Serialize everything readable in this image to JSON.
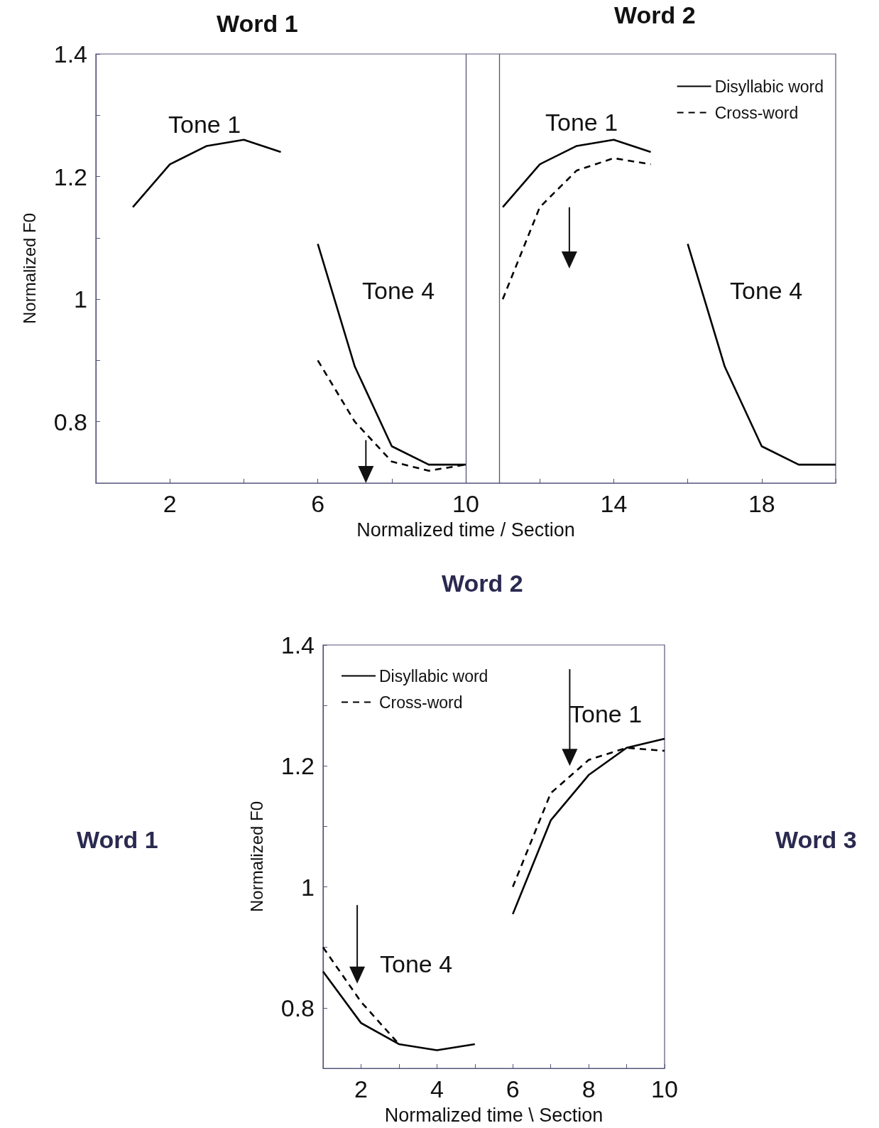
{
  "chart_data": [
    {
      "type": "line",
      "xlabel": "Normalized time / Section",
      "ylabel": "Normalized F0",
      "xlim": [
        0,
        20
      ],
      "ylim": [
        0.7,
        1.4
      ],
      "xticks": [
        2,
        {
          "value": 4,
          "label": null
        },
        6,
        {
          "value": 8,
          "label": null
        },
        10,
        {
          "value": 12,
          "label": null
        },
        14,
        {
          "value": 16,
          "label": null
        },
        18,
        {
          "value": 20,
          "label": null
        }
      ],
      "yticks": [
        {
          "value": 0.7,
          "label": null
        },
        0.8,
        {
          "value": 0.9,
          "label": null
        },
        1,
        {
          "value": 1.1,
          "label": null
        },
        1.2,
        {
          "value": 1.3,
          "label": null
        },
        1.4
      ],
      "legend": "top right",
      "grid": false,
      "series": [
        {
          "name": "Disyllabic word",
          "color": "#000000",
          "line_style": "solid",
          "x": [
            1,
            2,
            3,
            4,
            5
          ],
          "values": [
            1.15,
            1.22,
            1.25,
            1.26,
            1.24
          ]
        },
        {
          "color": "#000000",
          "line_style": "solid",
          "x": [
            6,
            7,
            8,
            9,
            10
          ],
          "values": [
            1.09,
            0.89,
            0.76,
            0.73,
            0.73
          ]
        },
        {
          "color": "#000000",
          "line_style": "solid",
          "x": [
            11,
            12,
            13,
            14,
            15
          ],
          "values": [
            1.15,
            1.22,
            1.25,
            1.26,
            1.24
          ]
        },
        {
          "color": "#000000",
          "line_style": "solid",
          "x": [
            16,
            17,
            18,
            19,
            20
          ],
          "values": [
            1.09,
            0.89,
            0.76,
            0.73,
            0.73
          ]
        },
        {
          "name": "Cross-word",
          "color": "#000000",
          "line_style": "dashed",
          "x": [
            6,
            7,
            8,
            9,
            10
          ],
          "values": [
            0.9,
            0.8,
            0.735,
            0.72,
            0.73
          ]
        },
        {
          "color": "#000000",
          "line_style": "dashed",
          "x": [
            11,
            12,
            13,
            14,
            15
          ],
          "values": [
            1.0,
            1.15,
            1.21,
            1.23,
            1.22
          ]
        }
      ],
      "ref_lines": [
        {
          "axis": "x",
          "value": 10,
          "color": "#55557a"
        },
        {
          "axis": "x",
          "value": 10.9,
          "color": "#55557a"
        }
      ],
      "annotations": [
        "Word 1",
        "Word 2",
        "Tone 1",
        "Tone 4",
        "Tone 1",
        "Tone 4"
      ]
    },
    {
      "type": "line",
      "xlabel": "Normalized time \\ Section",
      "ylabel": "Normalized F0",
      "xlim": [
        1,
        10
      ],
      "ylim": [
        0.7,
        1.4
      ],
      "xticks": [
        2,
        {
          "value": 3,
          "label": null
        },
        4,
        {
          "value": 5,
          "label": null
        },
        6,
        {
          "value": 7,
          "label": null
        },
        8,
        {
          "value": 9,
          "label": null
        },
        10
      ],
      "yticks": [
        {
          "value": 0.7,
          "label": null
        },
        0.8,
        {
          "value": 0.9,
          "label": null
        },
        1,
        {
          "value": 1.1,
          "label": null
        },
        1.2,
        {
          "value": 1.3,
          "label": null
        },
        1.4
      ],
      "legend": "top left",
      "grid": false,
      "series": [
        {
          "name": "Disyllabic word",
          "color": "#000000",
          "line_style": "solid",
          "x": [
            1,
            2,
            3,
            4,
            5
          ],
          "values": [
            0.86,
            0.775,
            0.74,
            0.73,
            0.74
          ]
        },
        {
          "color": "#000000",
          "line_style": "solid",
          "x": [
            6,
            7,
            8,
            9,
            10
          ],
          "values": [
            0.955,
            1.11,
            1.185,
            1.23,
            1.245
          ]
        },
        {
          "name": "Cross-word",
          "color": "#000000",
          "line_style": "dashed",
          "x": [
            1,
            2,
            3
          ],
          "values": [
            0.9,
            0.81,
            0.74
          ]
        },
        {
          "color": "#000000",
          "line_style": "dashed",
          "x": [
            6,
            7,
            8,
            9,
            10
          ],
          "values": [
            1.0,
            1.155,
            1.21,
            1.23,
            1.225
          ]
        }
      ],
      "annotations": [
        "Word 2",
        "Word 1",
        "Word 3",
        "Tone 1",
        "Tone 4"
      ]
    }
  ]
}
